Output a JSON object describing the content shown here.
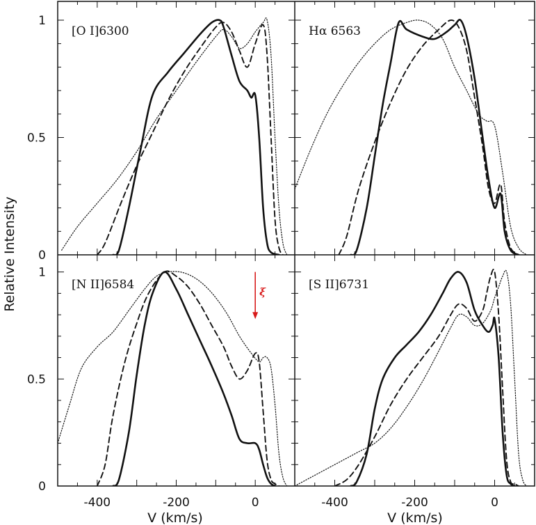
{
  "chart_data": {
    "type": "line",
    "layout": "2x2 grid, shared x and y axes",
    "xlabel": "V (km/s)",
    "ylabel": "Relative Intensity",
    "xlim": [
      -500,
      100
    ],
    "ylim": [
      0,
      1.08
    ],
    "x_ticks": [
      -400,
      -200,
      0
    ],
    "x_tick_labels": [
      "-400",
      "-200",
      "0"
    ],
    "y_ticks": [
      0,
      0.5,
      1
    ],
    "y_tick_labels": [
      "0",
      "0.5",
      "1"
    ],
    "series_styles": [
      {
        "name": "solid",
        "dash": "",
        "width": 2.6
      },
      {
        "name": "dashed",
        "dash": "8,5",
        "width": 1.9
      },
      {
        "name": "dotted",
        "dash": "1.4,2.2",
        "width": 1.2
      }
    ],
    "panels": [
      {
        "label": "[O I]6300",
        "series": [
          {
            "name": "solid",
            "x": [
              -360,
              -345,
              -320,
              -290,
              -260,
              -220,
              -180,
              -140,
              -110,
              -90,
              -80,
              -60,
              -40,
              -20,
              -10,
              0,
              10,
              20,
              30,
              40,
              60
            ],
            "y": [
              0,
              0.02,
              0.2,
              0.45,
              0.68,
              0.78,
              0.86,
              0.94,
              0.99,
              1.0,
              0.97,
              0.85,
              0.74,
              0.7,
              0.67,
              0.68,
              0.5,
              0.2,
              0.05,
              0.01,
              0
            ]
          },
          {
            "name": "dashed",
            "x": [
              -400,
              -380,
              -340,
              -300,
              -260,
              -220,
              -180,
              -140,
              -100,
              -80,
              -60,
              -40,
              -20,
              0,
              20,
              30,
              40,
              50,
              60,
              70
            ],
            "y": [
              0,
              0.05,
              0.22,
              0.38,
              0.52,
              0.66,
              0.78,
              0.88,
              0.97,
              0.99,
              0.95,
              0.87,
              0.8,
              0.9,
              0.98,
              0.85,
              0.5,
              0.15,
              0.03,
              0
            ]
          },
          {
            "name": "dotted",
            "x": [
              -490,
              -450,
              -400,
              -350,
              -300,
              -250,
              -200,
              -150,
              -100,
              -80,
              -60,
              -40,
              -20,
              0,
              20,
              30,
              40,
              50,
              60,
              70,
              80
            ],
            "y": [
              0.02,
              0.12,
              0.22,
              0.32,
              0.44,
              0.58,
              0.7,
              0.82,
              0.93,
              0.96,
              0.93,
              0.88,
              0.9,
              0.95,
              0.99,
              1.0,
              0.85,
              0.5,
              0.2,
              0.05,
              0
            ]
          }
        ]
      },
      {
        "label": "Hα 6563",
        "series": [
          {
            "name": "solid",
            "x": [
              -360,
              -345,
              -320,
              -300,
              -280,
              -260,
              -240,
              -220,
              -180,
              -150,
              -120,
              -100,
              -85,
              -70,
              -50,
              -30,
              -15,
              0,
              15,
              25,
              40,
              60
            ],
            "y": [
              0,
              0.02,
              0.2,
              0.42,
              0.64,
              0.82,
              0.99,
              0.96,
              0.93,
              0.92,
              0.95,
              0.98,
              1.0,
              0.93,
              0.75,
              0.5,
              0.32,
              0.2,
              0.26,
              0.1,
              0.02,
              0
            ]
          },
          {
            "name": "dashed",
            "x": [
              -390,
              -370,
              -340,
              -300,
              -260,
              -220,
              -180,
              -140,
              -110,
              -90,
              -70,
              -50,
              -30,
              -15,
              0,
              15,
              25,
              40,
              60
            ],
            "y": [
              0,
              0.08,
              0.28,
              0.48,
              0.65,
              0.79,
              0.89,
              0.96,
              1.0,
              0.97,
              0.87,
              0.67,
              0.46,
              0.28,
              0.22,
              0.3,
              0.14,
              0.03,
              0
            ]
          },
          {
            "name": "dotted",
            "x": [
              -500,
              -460,
              -420,
              -380,
              -340,
              -300,
              -260,
              -220,
              -190,
              -160,
              -130,
              -100,
              -70,
              -40,
              -20,
              0,
              20,
              40,
              60,
              80
            ],
            "y": [
              0.28,
              0.45,
              0.6,
              0.72,
              0.82,
              0.9,
              0.96,
              0.99,
              1.0,
              0.98,
              0.92,
              0.8,
              0.7,
              0.6,
              0.57,
              0.55,
              0.35,
              0.12,
              0.03,
              0
            ]
          }
        ]
      },
      {
        "label": "[N II]6584",
        "series": [
          {
            "name": "solid",
            "x": [
              -360,
              -345,
              -320,
              -300,
              -280,
              -260,
              -230,
              -200,
              -170,
              -140,
              -110,
              -80,
              -60,
              -40,
              -20,
              0,
              10,
              20,
              30,
              40,
              50
            ],
            "y": [
              0,
              0.03,
              0.25,
              0.52,
              0.75,
              0.9,
              1.0,
              0.92,
              0.8,
              0.68,
              0.56,
              0.43,
              0.33,
              0.22,
              0.2,
              0.2,
              0.17,
              0.1,
              0.04,
              0.01,
              0
            ]
          },
          {
            "name": "dashed",
            "x": [
              -400,
              -380,
              -360,
              -330,
              -300,
              -270,
              -230,
              -200,
              -170,
              -140,
              -110,
              -80,
              -60,
              -40,
              -20,
              0,
              10,
              20,
              30,
              40,
              50,
              60
            ],
            "y": [
              0,
              0.1,
              0.33,
              0.58,
              0.76,
              0.9,
              1.0,
              0.98,
              0.93,
              0.85,
              0.75,
              0.65,
              0.56,
              0.5,
              0.54,
              0.62,
              0.58,
              0.35,
              0.12,
              0.03,
              0.01,
              0
            ]
          },
          {
            "name": "dotted",
            "x": [
              -500,
              -470,
              -440,
              -400,
              -360,
              -320,
              -280,
              -250,
              -220,
              -190,
              -160,
              -130,
              -100,
              -70,
              -40,
              -10,
              10,
              20,
              30,
              40,
              50,
              60,
              70,
              80
            ],
            "y": [
              0.2,
              0.38,
              0.55,
              0.65,
              0.72,
              0.82,
              0.92,
              0.98,
              1.0,
              1.0,
              0.98,
              0.94,
              0.88,
              0.8,
              0.7,
              0.62,
              0.58,
              0.6,
              0.6,
              0.55,
              0.38,
              0.15,
              0.04,
              0
            ]
          }
        ]
      },
      {
        "label": "[S II]6731",
        "series": [
          {
            "name": "solid",
            "x": [
              -360,
              -345,
              -320,
              -300,
              -280,
              -250,
              -220,
              -190,
              -160,
              -130,
              -110,
              -90,
              -70,
              -50,
              -30,
              -15,
              -5,
              0,
              10,
              20,
              30,
              40,
              50
            ],
            "y": [
              0,
              0.02,
              0.15,
              0.36,
              0.5,
              0.6,
              0.66,
              0.72,
              0.8,
              0.9,
              0.97,
              1.0,
              0.95,
              0.82,
              0.75,
              0.72,
              0.75,
              0.78,
              0.6,
              0.25,
              0.05,
              0.01,
              0
            ]
          },
          {
            "name": "dashed",
            "x": [
              -400,
              -370,
              -340,
              -300,
              -260,
              -220,
              -180,
              -140,
              -110,
              -90,
              -70,
              -50,
              -30,
              -20,
              -10,
              0,
              10,
              20,
              30,
              40,
              50,
              60
            ],
            "y": [
              0,
              0.03,
              0.1,
              0.23,
              0.38,
              0.5,
              0.6,
              0.7,
              0.8,
              0.85,
              0.83,
              0.77,
              0.82,
              0.9,
              0.98,
              1.0,
              0.8,
              0.45,
              0.12,
              0.02,
              0.01,
              0
            ]
          },
          {
            "name": "dotted",
            "x": [
              -500,
              -460,
              -420,
              -380,
              -340,
              -300,
              -260,
              -220,
              -180,
              -140,
              -110,
              -90,
              -70,
              -50,
              -30,
              -10,
              0,
              10,
              20,
              30,
              40,
              50,
              60,
              70,
              80
            ],
            "y": [
              0,
              0.04,
              0.08,
              0.12,
              0.16,
              0.2,
              0.27,
              0.37,
              0.49,
              0.63,
              0.74,
              0.8,
              0.79,
              0.75,
              0.76,
              0.82,
              0.88,
              0.93,
              0.98,
              1.0,
              0.85,
              0.5,
              0.15,
              0.03,
              0
            ]
          }
        ]
      }
    ],
    "annotation": {
      "panel": 2,
      "text": "ξ",
      "color": "#d81b1b",
      "arrow_x": 0,
      "arrow_y_from": 1.0,
      "arrow_y_to": 0.78
    }
  }
}
